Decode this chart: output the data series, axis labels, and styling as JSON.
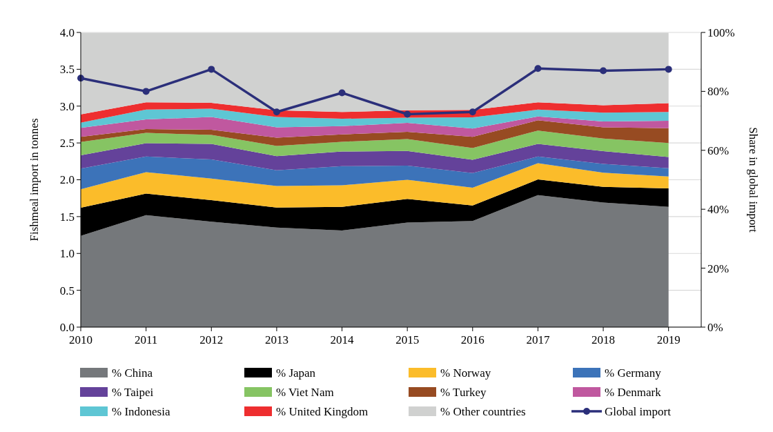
{
  "chart_data": {
    "type": "area",
    "stacked": true,
    "x": [
      2010,
      2011,
      2012,
      2013,
      2014,
      2015,
      2016,
      2017,
      2018,
      2019
    ],
    "xlim": [
      2010,
      2019.5
    ],
    "xticks": [
      2010,
      2011,
      2012,
      2013,
      2014,
      2015,
      2016,
      2017,
      2018,
      2019
    ],
    "ylim": [
      0,
      4
    ],
    "yticks": [
      {
        "value": 0,
        "label": "0.0"
      },
      0.5,
      {
        "value": 1,
        "label": "1.0"
      },
      1.5,
      {
        "value": 2,
        "label": "2.0"
      },
      2.5,
      {
        "value": 3,
        "label": "3.0"
      },
      3.5,
      {
        "value": 4,
        "label": "4.0"
      }
    ],
    "y2lim": [
      0,
      100
    ],
    "y2ticks": [
      {
        "value": 0,
        "label": "0%"
      },
      {
        "value": 20,
        "label": "20%"
      },
      {
        "value": 40,
        "label": "40%"
      },
      {
        "value": 60,
        "label": "60%"
      },
      {
        "value": 80,
        "label": "80%"
      },
      {
        "value": 100,
        "label": "100%"
      }
    ],
    "ylabel": "Fishmeal import in tonnes",
    "y2label": "Share in global import",
    "grid": "y",
    "legend": "bottom",
    "series": [
      {
        "name": "% China",
        "color": "#75787b",
        "axis": "y2",
        "values": [
          31,
          38,
          35.8,
          33.8,
          32.8,
          35.5,
          36,
          44.8,
          42.3,
          40.8
        ]
      },
      {
        "name": "% Japan",
        "color": "#000000",
        "axis": "y2",
        "values": [
          9.5,
          7.3,
          7.3,
          6.8,
          8,
          8,
          5.3,
          5.3,
          5.3,
          6.3
        ]
      },
      {
        "name": "% Norway",
        "color": "#fbbc2a",
        "axis": "y2",
        "values": [
          6.3,
          7.3,
          7.3,
          7.3,
          7.3,
          6.5,
          6,
          5.5,
          4.8,
          4
        ]
      },
      {
        "name": "% Germany",
        "color": "#3c73b9",
        "axis": "y2",
        "values": [
          7,
          5.3,
          6.5,
          5.3,
          6.5,
          4.8,
          5,
          2.3,
          3,
          2.8
        ]
      },
      {
        "name": "% Taipei",
        "color": "#64429a",
        "axis": "y2",
        "values": [
          4.5,
          4.5,
          5.3,
          4.8,
          5,
          5,
          4.5,
          4.3,
          4.3,
          3.8
        ]
      },
      {
        "name": "% Viet Nam",
        "color": "#86c463",
        "axis": "y2",
        "values": [
          4.5,
          3.5,
          3,
          3.5,
          3.3,
          4,
          4,
          4.5,
          4.3,
          4.8
        ]
      },
      {
        "name": "% Turkey",
        "color": "#974b22",
        "axis": "y2",
        "values": [
          1.8,
          1.3,
          1.8,
          2.8,
          2.5,
          2.5,
          3.8,
          3.5,
          3.8,
          5
        ]
      },
      {
        "name": "% Denmark",
        "color": "#c0589f",
        "axis": "y2",
        "values": [
          3,
          3.3,
          4.3,
          3.5,
          2.8,
          3,
          2.8,
          1.3,
          2,
          2.5
        ]
      },
      {
        "name": "% Indonesia",
        "color": "#5ec6d4",
        "axis": "y2",
        "values": [
          1.8,
          3.3,
          2.8,
          3.5,
          2.5,
          1.8,
          3.8,
          2.3,
          3,
          3
        ]
      },
      {
        "name": "% United Kingdom",
        "color": "#ee2e2f",
        "axis": "y2",
        "values": [
          2.8,
          2.5,
          2,
          2.3,
          2.3,
          2.5,
          2.5,
          2.5,
          2.5,
          3
        ]
      },
      {
        "name": "% Other countries",
        "color": "#d0d1d0",
        "axis": "y2",
        "values": [
          27.7,
          23.6,
          23.8,
          26.3,
          26.9,
          26.3,
          26.2,
          23.6,
          24.6,
          23.9
        ]
      },
      {
        "name": "Global import",
        "type": "line",
        "color": "#2b2f7a",
        "marker": "circle",
        "values": [
          3.38,
          3.2,
          3.5,
          2.92,
          3.18,
          2.89,
          2.92,
          3.51,
          3.48,
          3.5
        ]
      }
    ]
  }
}
